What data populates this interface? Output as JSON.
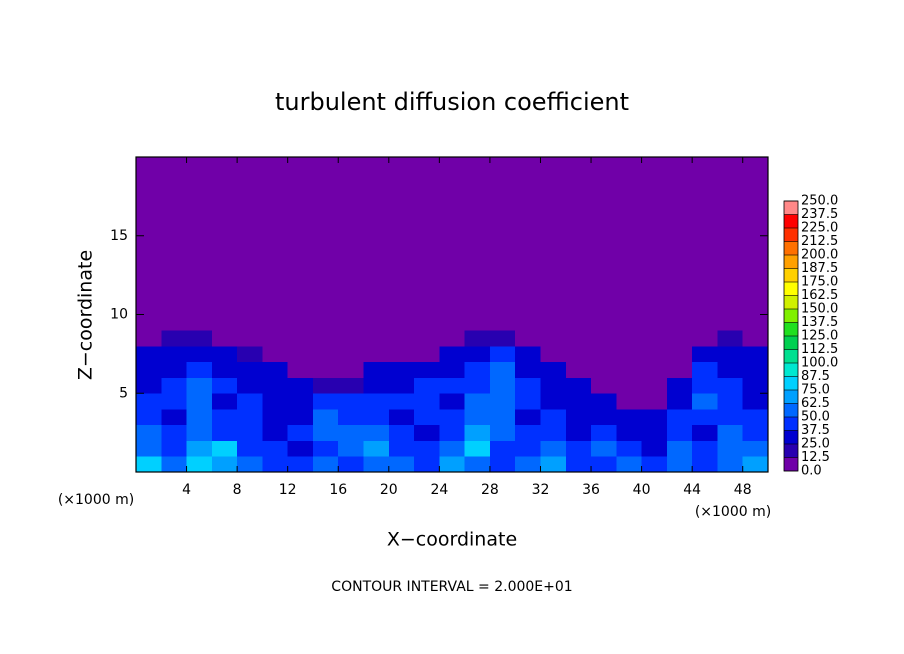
{
  "chart_data": {
    "type": "contour",
    "title": "turbulent diffusion coefficient",
    "x_label": "X−coordinate",
    "y_label": "Z−coordinate",
    "x_unit_labels": [
      "(×1000 m)",
      "(×1000 m)"
    ],
    "footer": "CONTOUR INTERVAL = 2.000E+01",
    "xlim": [
      0,
      50
    ],
    "xticks": [
      4,
      8,
      12,
      16,
      20,
      24,
      28,
      32,
      36,
      40,
      44,
      48
    ],
    "ylim": [
      0,
      20
    ],
    "yticks": [
      5,
      10,
      15
    ],
    "x_edges": [
      0,
      2,
      4,
      6,
      8,
      10,
      12,
      14,
      16,
      18,
      20,
      22,
      24,
      26,
      28,
      30,
      32,
      34,
      36,
      38,
      40,
      42,
      44,
      46,
      48,
      50
    ],
    "z_edges": [
      0,
      1,
      2,
      3,
      4,
      5,
      6,
      7,
      8,
      9
    ],
    "z": [
      [
        85,
        60,
        80,
        70,
        55,
        45,
        40,
        50,
        45,
        60,
        50,
        45,
        70,
        60,
        40,
        55,
        65,
        45,
        40,
        50,
        40,
        55,
        45,
        60,
        70
      ],
      [
        55,
        45,
        70,
        75,
        45,
        40,
        35,
        45,
        50,
        70,
        45,
        40,
        55,
        75,
        45,
        45,
        50,
        40,
        60,
        45,
        35,
        50,
        40,
        55,
        50
      ],
      [
        50,
        40,
        55,
        45,
        40,
        35,
        40,
        50,
        60,
        55,
        40,
        35,
        45,
        70,
        50,
        40,
        45,
        35,
        45,
        30,
        30,
        45,
        35,
        50,
        45
      ],
      [
        45,
        35,
        50,
        40,
        45,
        30,
        35,
        55,
        45,
        45,
        35,
        40,
        40,
        60,
        55,
        35,
        40,
        30,
        35,
        30,
        25,
        40,
        45,
        45,
        40
      ],
      [
        40,
        45,
        60,
        35,
        40,
        35,
        30,
        45,
        40,
        40,
        40,
        45,
        35,
        50,
        60,
        45,
        35,
        30,
        25,
        0,
        0,
        35,
        50,
        40,
        35
      ],
      [
        35,
        40,
        55,
        40,
        35,
        30,
        25,
        20,
        20,
        35,
        30,
        40,
        40,
        45,
        55,
        40,
        30,
        25,
        0,
        0,
        0,
        25,
        45,
        40,
        35
      ],
      [
        30,
        35,
        45,
        35,
        30,
        25,
        0,
        0,
        0,
        25,
        25,
        35,
        35,
        40,
        50,
        35,
        25,
        0,
        0,
        0,
        0,
        0,
        40,
        35,
        30
      ],
      [
        25,
        30,
        35,
        30,
        20,
        0,
        0,
        0,
        0,
        0,
        0,
        0,
        25,
        35,
        40,
        25,
        0,
        0,
        0,
        0,
        0,
        0,
        30,
        30,
        25
      ],
      [
        0,
        15,
        15,
        0,
        0,
        0,
        0,
        0,
        0,
        0,
        0,
        0,
        0,
        15,
        15,
        0,
        0,
        0,
        0,
        0,
        0,
        0,
        0,
        15,
        0
      ]
    ],
    "colorbar_ticks": [
      {
        "value": 0,
        "label": "0.0"
      },
      12.5,
      {
        "value": 25,
        "label": "25.0"
      },
      37.5,
      {
        "value": 50,
        "label": "50.0"
      },
      62.5,
      {
        "value": 75,
        "label": "75.0"
      },
      87.5,
      {
        "value": 100,
        "label": "100.0"
      },
      112.5,
      {
        "value": 125,
        "label": "125.0"
      },
      137.5,
      {
        "value": 150,
        "label": "150.0"
      },
      162.5,
      {
        "value": 175,
        "label": "175.0"
      },
      187.5,
      {
        "value": 200,
        "label": "200.0"
      },
      212.5,
      {
        "value": 225,
        "label": "225.0"
      },
      237.5,
      {
        "value": 250,
        "label": "250.0"
      }
    ],
    "colors": [
      "#7000a8",
      "#2800b0",
      "#0000d0",
      "#0030ff",
      "#0068ff",
      "#00a0ff",
      "#00d0ff",
      "#00e8d0",
      "#00e090",
      "#00d050",
      "#20e020",
      "#80f000",
      "#d0f000",
      "#ffff00",
      "#ffd000",
      "#ffa000",
      "#ff7000",
      "#ff3000",
      "#ff0000",
      "#ff8888"
    ]
  }
}
